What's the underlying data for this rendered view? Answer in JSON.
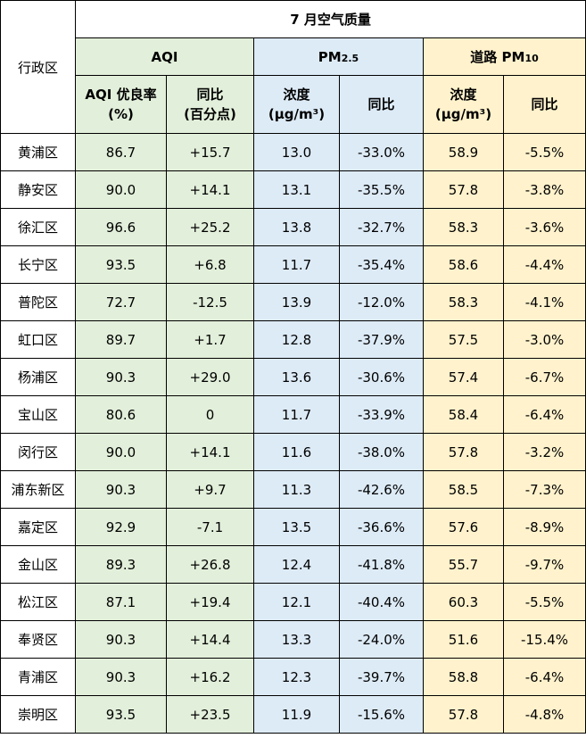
{
  "title": "7 月空气质量",
  "district_header": "行政区",
  "groups": {
    "aqi": {
      "label": "AQI"
    },
    "pm25": {
      "label": "PM",
      "sub": "2.5"
    },
    "pm10": {
      "label": "道路 PM",
      "sub": "10"
    }
  },
  "sub_headers": {
    "aqi_rate": [
      "AQI 优良率",
      "(%)"
    ],
    "aqi_yoy": [
      "同比",
      "(百分点)"
    ],
    "pm25_conc": [
      "浓度",
      "(μg/m³)"
    ],
    "pm25_yoy": "同比",
    "pm10_conc": [
      "浓度",
      "(μg/m³)"
    ],
    "pm10_yoy": "同比"
  },
  "colors": {
    "aqi_bg": "#e2efda",
    "pm25_bg": "#ddebf7",
    "pm10_bg": "#fff2cc"
  },
  "rows": [
    {
      "district": "黄浦区",
      "aqi_rate": "86.7",
      "aqi_yoy": "+15.7",
      "pm25": "13.0",
      "pm25_yoy": "-33.0%",
      "pm10": "58.9",
      "pm10_yoy": "-5.5%"
    },
    {
      "district": "静安区",
      "aqi_rate": "90.0",
      "aqi_yoy": "+14.1",
      "pm25": "13.1",
      "pm25_yoy": "-35.5%",
      "pm10": "57.8",
      "pm10_yoy": "-3.8%"
    },
    {
      "district": "徐汇区",
      "aqi_rate": "96.6",
      "aqi_yoy": "+25.2",
      "pm25": "13.8",
      "pm25_yoy": "-32.7%",
      "pm10": "58.3",
      "pm10_yoy": "-3.6%"
    },
    {
      "district": "长宁区",
      "aqi_rate": "93.5",
      "aqi_yoy": "+6.8",
      "pm25": "11.7",
      "pm25_yoy": "-35.4%",
      "pm10": "58.6",
      "pm10_yoy": "-4.4%"
    },
    {
      "district": "普陀区",
      "aqi_rate": "72.7",
      "aqi_yoy": "-12.5",
      "pm25": "13.9",
      "pm25_yoy": "-12.0%",
      "pm10": "58.3",
      "pm10_yoy": "-4.1%"
    },
    {
      "district": "虹口区",
      "aqi_rate": "89.7",
      "aqi_yoy": "+1.7",
      "pm25": "12.8",
      "pm25_yoy": "-37.9%",
      "pm10": "57.5",
      "pm10_yoy": "-3.0%"
    },
    {
      "district": "杨浦区",
      "aqi_rate": "90.3",
      "aqi_yoy": "+29.0",
      "pm25": "13.6",
      "pm25_yoy": "-30.6%",
      "pm10": "57.4",
      "pm10_yoy": "-6.7%"
    },
    {
      "district": "宝山区",
      "aqi_rate": "80.6",
      "aqi_yoy": "0",
      "pm25": "11.7",
      "pm25_yoy": "-33.9%",
      "pm10": "58.4",
      "pm10_yoy": "-6.4%"
    },
    {
      "district": "闵行区",
      "aqi_rate": "90.0",
      "aqi_yoy": "+14.1",
      "pm25": "11.6",
      "pm25_yoy": "-38.0%",
      "pm10": "57.8",
      "pm10_yoy": "-3.2%"
    },
    {
      "district": "浦东新区",
      "aqi_rate": "90.3",
      "aqi_yoy": "+9.7",
      "pm25": "11.3",
      "pm25_yoy": "-42.6%",
      "pm10": "58.5",
      "pm10_yoy": "-7.3%"
    },
    {
      "district": "嘉定区",
      "aqi_rate": "92.9",
      "aqi_yoy": "-7.1",
      "pm25": "13.5",
      "pm25_yoy": "-36.6%",
      "pm10": "57.6",
      "pm10_yoy": "-8.9%"
    },
    {
      "district": "金山区",
      "aqi_rate": "89.3",
      "aqi_yoy": "+26.8",
      "pm25": "12.4",
      "pm25_yoy": "-41.8%",
      "pm10": "55.7",
      "pm10_yoy": "-9.7%"
    },
    {
      "district": "松江区",
      "aqi_rate": "87.1",
      "aqi_yoy": "+19.4",
      "pm25": "12.1",
      "pm25_yoy": "-40.4%",
      "pm10": "60.3",
      "pm10_yoy": "-5.5%"
    },
    {
      "district": "奉贤区",
      "aqi_rate": "90.3",
      "aqi_yoy": "+14.4",
      "pm25": "13.3",
      "pm25_yoy": "-24.0%",
      "pm10": "51.6",
      "pm10_yoy": "-15.4%"
    },
    {
      "district": "青浦区",
      "aqi_rate": "90.3",
      "aqi_yoy": "+16.2",
      "pm25": "12.3",
      "pm25_yoy": "-39.7%",
      "pm10": "58.8",
      "pm10_yoy": "-6.4%"
    },
    {
      "district": "崇明区",
      "aqi_rate": "93.5",
      "aqi_yoy": "+23.5",
      "pm25": "11.9",
      "pm25_yoy": "-15.6%",
      "pm10": "57.8",
      "pm10_yoy": "-4.8%"
    }
  ]
}
